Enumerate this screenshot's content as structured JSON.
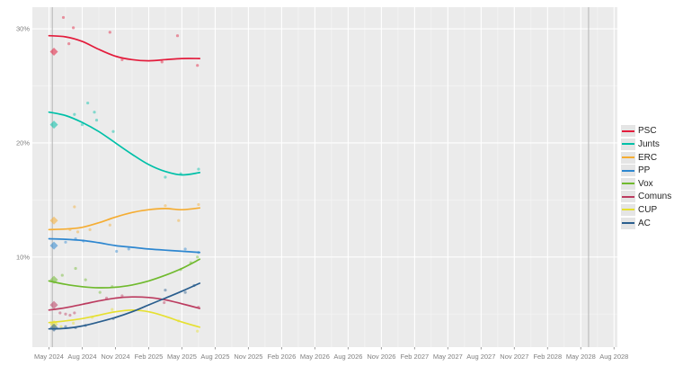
{
  "figure": {
    "title": "",
    "panel_background": "#ebebeb",
    "grid_major_color": "#ffffff",
    "grid_minor_color": "#f4f4f4",
    "tick_label_color": "#7f7f7f",
    "reference_line_color": "#b4b4b4",
    "legend_key_background": "#e5e5e5"
  },
  "chart_data": {
    "type": "line",
    "title": "",
    "xlabel": "",
    "ylabel": "",
    "grid": true,
    "legend_position": "right",
    "x_unit": "months since May 2024",
    "xlim_months": [
      -1.5,
      51.3
    ],
    "ylim": [
      2.1,
      31.9
    ],
    "x_axis": {
      "tick_months": [
        0,
        3,
        6,
        9,
        12,
        15,
        18,
        21,
        24,
        27,
        30,
        33,
        36,
        39,
        42,
        45,
        48,
        51
      ],
      "tick_labels": [
        "May 2024",
        "Aug 2024",
        "Nov 2024",
        "Feb 2025",
        "May 2025",
        "Aug 2025",
        "Nov 2025",
        "Feb 2026",
        "May 2026",
        "Aug 2026",
        "Nov 2026",
        "Feb 2027",
        "May 2027",
        "Aug 2027",
        "Nov 2027",
        "Feb 2028",
        "May 2028",
        "Aug 2028"
      ]
    },
    "y_axis": {
      "tick_values": [
        10,
        20,
        30
      ],
      "tick_labels": [
        "10%",
        "20%",
        "30%"
      ],
      "minor_values": [
        5,
        15,
        25
      ]
    },
    "reference_lines_months": [
      0.3,
      48.7
    ],
    "election_month": 0.45,
    "series": [
      {
        "name": "PSC",
        "color": "#e31c3c",
        "election_result": 28.0,
        "trend": [
          [
            0,
            29.4
          ],
          [
            1.5,
            29.3
          ],
          [
            3,
            28.9
          ],
          [
            4.5,
            28.2
          ],
          [
            6,
            27.6
          ],
          [
            7.5,
            27.3
          ],
          [
            9,
            27.2
          ],
          [
            10.5,
            27.3
          ],
          [
            12,
            27.4
          ],
          [
            13.6,
            27.4
          ]
        ],
        "polls": [
          [
            1.3,
            31.0
          ],
          [
            1.8,
            28.7
          ],
          [
            2.2,
            30.1
          ],
          [
            5.5,
            29.7
          ],
          [
            6.6,
            27.3
          ],
          [
            10.2,
            27.1
          ],
          [
            11.6,
            29.4
          ],
          [
            13.4,
            26.8
          ]
        ]
      },
      {
        "name": "Junts",
        "color": "#00c0a8",
        "election_result": 21.6,
        "trend": [
          [
            0,
            22.7
          ],
          [
            1.5,
            22.4
          ],
          [
            3,
            21.8
          ],
          [
            4.5,
            21.0
          ],
          [
            6,
            20.0
          ],
          [
            7.5,
            19.0
          ],
          [
            9,
            18.1
          ],
          [
            10.5,
            17.5
          ],
          [
            12,
            17.2
          ],
          [
            13.6,
            17.4
          ]
        ],
        "polls": [
          [
            2.3,
            22.5
          ],
          [
            3.0,
            21.6
          ],
          [
            3.5,
            23.5
          ],
          [
            4.1,
            22.7
          ],
          [
            4.3,
            22.0
          ],
          [
            5.8,
            21.0
          ],
          [
            10.5,
            17.0
          ],
          [
            11.9,
            17.3
          ],
          [
            13.5,
            17.7
          ]
        ]
      },
      {
        "name": "ERC",
        "color": "#f5ad33",
        "election_result": 13.2,
        "trend": [
          [
            0,
            12.4
          ],
          [
            1.5,
            12.45
          ],
          [
            3,
            12.6
          ],
          [
            4.5,
            13.0
          ],
          [
            6,
            13.5
          ],
          [
            7.5,
            13.9
          ],
          [
            9,
            14.15
          ],
          [
            10.5,
            14.25
          ],
          [
            12,
            14.15
          ],
          [
            13.6,
            14.3
          ]
        ],
        "polls": [
          [
            1.9,
            12.4
          ],
          [
            2.3,
            14.4
          ],
          [
            2.6,
            12.2
          ],
          [
            3.7,
            12.4
          ],
          [
            5.5,
            12.8
          ],
          [
            10.5,
            14.5
          ],
          [
            11.7,
            13.2
          ],
          [
            13.5,
            14.6
          ]
        ]
      },
      {
        "name": "PP",
        "color": "#2e87d0",
        "election_result": 11.0,
        "trend": [
          [
            0,
            11.6
          ],
          [
            1.5,
            11.55
          ],
          [
            3,
            11.45
          ],
          [
            4.5,
            11.25
          ],
          [
            6,
            11.0
          ],
          [
            7.5,
            10.85
          ],
          [
            9,
            10.7
          ],
          [
            10.5,
            10.6
          ],
          [
            12,
            10.5
          ],
          [
            13.6,
            10.4
          ]
        ],
        "polls": [
          [
            1.5,
            11.3
          ],
          [
            2.4,
            11.6
          ],
          [
            3.1,
            11.4
          ],
          [
            6.1,
            10.5
          ],
          [
            7.2,
            10.7
          ],
          [
            12.3,
            10.7
          ],
          [
            13.5,
            10.4
          ]
        ]
      },
      {
        "name": "Vox",
        "color": "#70ba2e",
        "election_result": 8.0,
        "trend": [
          [
            0,
            7.9
          ],
          [
            1.5,
            7.6
          ],
          [
            3,
            7.4
          ],
          [
            4.5,
            7.3
          ],
          [
            6,
            7.35
          ],
          [
            7.5,
            7.55
          ],
          [
            9,
            7.9
          ],
          [
            10.5,
            8.4
          ],
          [
            12,
            9.0
          ],
          [
            13.6,
            9.8
          ]
        ],
        "polls": [
          [
            1.2,
            8.4
          ],
          [
            2.4,
            9.0
          ],
          [
            3.3,
            8.0
          ],
          [
            4.6,
            6.9
          ],
          [
            5.7,
            7.4
          ],
          [
            11.9,
            8.9
          ],
          [
            12.8,
            9.5
          ],
          [
            13.4,
            10.0
          ]
        ]
      },
      {
        "name": "Comuns",
        "color": "#bc3c60",
        "election_result": 5.8,
        "trend": [
          [
            0,
            5.35
          ],
          [
            1.5,
            5.55
          ],
          [
            3,
            5.85
          ],
          [
            4.5,
            6.15
          ],
          [
            6,
            6.4
          ],
          [
            7.5,
            6.5
          ],
          [
            9,
            6.45
          ],
          [
            10.5,
            6.25
          ],
          [
            12,
            5.9
          ],
          [
            13.6,
            5.5
          ]
        ],
        "polls": [
          [
            1.0,
            5.1
          ],
          [
            1.5,
            5.0
          ],
          [
            1.9,
            4.9
          ],
          [
            2.3,
            5.1
          ],
          [
            5.2,
            6.4
          ],
          [
            6.6,
            6.6
          ],
          [
            10.4,
            6.0
          ],
          [
            13.5,
            5.6
          ]
        ]
      },
      {
        "name": "CUP",
        "color": "#e6e030",
        "election_result": 4.1,
        "trend": [
          [
            0,
            4.25
          ],
          [
            1.5,
            4.4
          ],
          [
            3,
            4.6
          ],
          [
            4.5,
            4.9
          ],
          [
            6,
            5.2
          ],
          [
            7.5,
            5.35
          ],
          [
            9,
            5.2
          ],
          [
            10.5,
            4.8
          ],
          [
            12,
            4.3
          ],
          [
            13.6,
            3.85
          ]
        ],
        "polls": [
          [
            1.1,
            3.9
          ],
          [
            2.2,
            4.2
          ],
          [
            3.9,
            4.7
          ],
          [
            5.7,
            5.4
          ],
          [
            11.7,
            4.4
          ],
          [
            13.4,
            3.5
          ]
        ]
      },
      {
        "name": "AC",
        "color": "#2a5e8e",
        "election_result": 3.8,
        "trend": [
          [
            0,
            3.7
          ],
          [
            1.5,
            3.75
          ],
          [
            3,
            3.95
          ],
          [
            4.5,
            4.3
          ],
          [
            6,
            4.7
          ],
          [
            7.5,
            5.2
          ],
          [
            9,
            5.8
          ],
          [
            10.5,
            6.4
          ],
          [
            12,
            7.0
          ],
          [
            13.6,
            7.7
          ]
        ],
        "polls": [
          [
            1.5,
            3.9
          ],
          [
            2.4,
            3.8
          ],
          [
            3.3,
            4.0
          ],
          [
            5.8,
            4.6
          ],
          [
            10.5,
            7.1
          ],
          [
            12.3,
            6.9
          ],
          [
            13.1,
            7.5
          ]
        ]
      }
    ]
  },
  "legend": {
    "items": [
      {
        "label": "PSC",
        "color": "#e31c3c"
      },
      {
        "label": "Junts",
        "color": "#00c0a8"
      },
      {
        "label": "ERC",
        "color": "#f5ad33"
      },
      {
        "label": "PP",
        "color": "#2e87d0"
      },
      {
        "label": "Vox",
        "color": "#70ba2e"
      },
      {
        "label": "Comuns",
        "color": "#bc3c60"
      },
      {
        "label": "CUP",
        "color": "#e6e030"
      },
      {
        "label": "AC",
        "color": "#2a5e8e"
      }
    ]
  }
}
